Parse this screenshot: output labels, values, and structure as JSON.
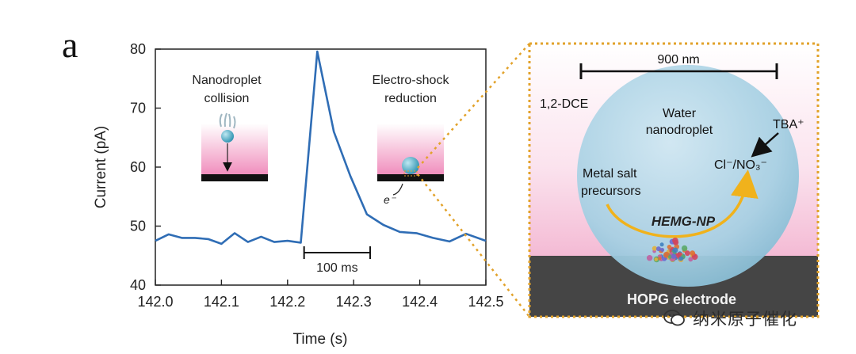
{
  "panel_letter": "a",
  "chart_data": {
    "type": "line",
    "xlabel": "Time (s)",
    "ylabel": "Current (pA)",
    "xlim": [
      142.0,
      142.5
    ],
    "ylim": [
      40,
      80
    ],
    "x_ticks": [
      "142.0",
      "142.1",
      "142.2",
      "142.3",
      "142.4",
      "142.5"
    ],
    "y_ticks": [
      "40",
      "50",
      "60",
      "70",
      "80"
    ],
    "grid": false,
    "line_color": "#2f6db5",
    "series": [
      {
        "x": [
          142.0,
          142.02,
          142.04,
          142.06,
          142.08,
          142.1,
          142.12,
          142.14,
          142.16,
          142.18,
          142.2,
          142.22,
          142.245,
          142.27,
          142.295,
          142.32,
          142.345,
          142.37,
          142.395,
          142.42,
          142.445,
          142.47,
          142.5
        ],
        "y": [
          47.5,
          48.6,
          48.0,
          48.0,
          47.8,
          47.0,
          48.8,
          47.3,
          48.2,
          47.3,
          47.5,
          47.2,
          79.6,
          66.0,
          58.5,
          52.0,
          50.2,
          49.0,
          48.8,
          48.0,
          47.4,
          48.7,
          47.5
        ]
      }
    ],
    "scale_bar": {
      "label": "100 ms",
      "x_start": 142.225,
      "x_end": 142.325,
      "y": 45.5
    },
    "annotations": {
      "collision": [
        "Nanodroplet",
        "collision"
      ],
      "reduction": [
        "Electro-shock",
        "reduction"
      ],
      "electron": "e⁻"
    }
  },
  "schematic": {
    "scale_label": "900 nm",
    "solvent": "1,2-DCE",
    "droplet": [
      "Water",
      "nanodroplet"
    ],
    "ion": "TBA⁺",
    "anions": "Cl⁻/NO₃⁻",
    "precursor": [
      "Metal salt",
      "precursors"
    ],
    "product": "HEMG-NP",
    "electrode": "HOPG electrode",
    "colors": {
      "pink": "#f2b3cf",
      "electrode": "#444444",
      "droplet": "#9fcbe0",
      "dotted": "#e2a22a",
      "arrow": "#f0b21c"
    }
  },
  "watermark": "纳米原子催化"
}
